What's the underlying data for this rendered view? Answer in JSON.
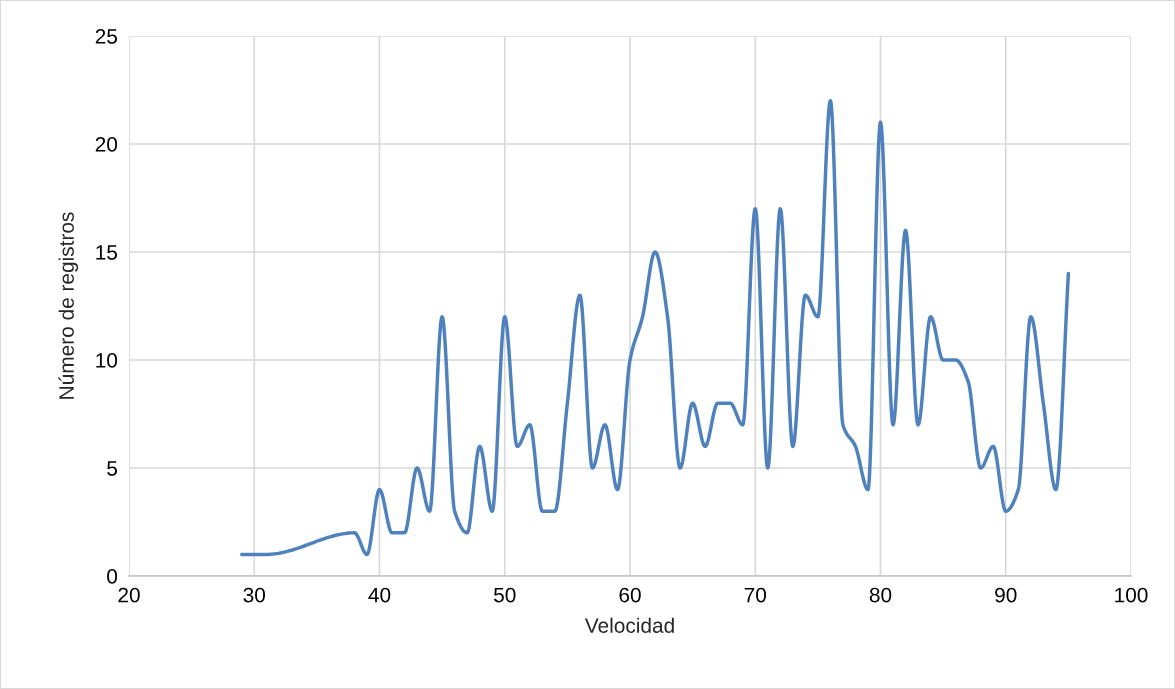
{
  "chart_data": {
    "type": "line",
    "xlabel": "Velocidad",
    "ylabel": "Número de registros",
    "x": [
      29,
      31,
      38,
      39,
      40,
      41,
      42,
      43,
      44,
      45,
      46,
      47,
      48,
      49,
      50,
      51,
      52,
      53,
      54,
      55,
      56,
      57,
      58,
      59,
      60,
      61,
      62,
      63,
      64,
      65,
      66,
      67,
      68,
      69,
      70,
      71,
      72,
      73,
      74,
      75,
      76,
      77,
      78,
      79,
      80,
      81,
      82,
      83,
      84,
      85,
      86,
      87,
      88,
      89,
      90,
      91,
      92,
      93,
      94,
      95
    ],
    "series": [
      {
        "color": "#4f81bd",
        "values": [
          1,
          1,
          2,
          1,
          4,
          2,
          2,
          5,
          3,
          12,
          3,
          2,
          6,
          3,
          12,
          6,
          7,
          3,
          3,
          8,
          13,
          5,
          7,
          4,
          10,
          12,
          15,
          12,
          5,
          8,
          6,
          8,
          8,
          7,
          17,
          5,
          17,
          6,
          13,
          12,
          22,
          7,
          6,
          4,
          21,
          7,
          16,
          7,
          12,
          10,
          10,
          9,
          5,
          6,
          3,
          4,
          12,
          8,
          4,
          14
        ]
      }
    ],
    "xlim": [
      20,
      100
    ],
    "xticks": [
      20,
      30,
      40,
      50,
      60,
      70,
      80,
      90,
      100
    ],
    "ylim": [
      0,
      25
    ],
    "yticks": [
      0,
      5,
      10,
      15,
      20,
      25
    ],
    "grid": true,
    "legend": false,
    "line_style": "solid",
    "marker": "none"
  }
}
